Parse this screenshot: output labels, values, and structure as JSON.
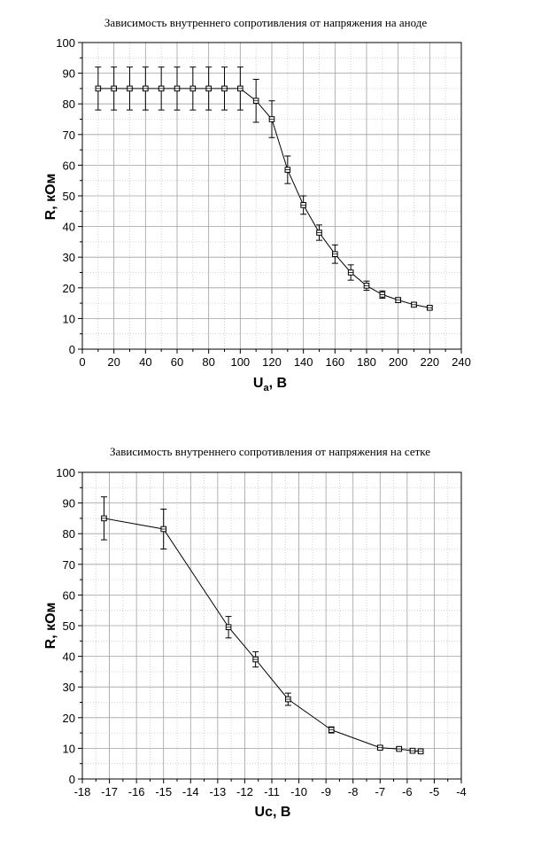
{
  "chart_data": [
    {
      "type": "line",
      "title": "Зависимость внутреннего сопротивления от напряжения на аноде",
      "xlabel_main": "U",
      "xlabel_sub": "a",
      "xlabel_rest": ", В",
      "ylabel": "R, кОм",
      "xlim": [
        0,
        240
      ],
      "ylim": [
        0,
        100
      ],
      "xticks": [
        0,
        20,
        40,
        60,
        80,
        100,
        120,
        140,
        160,
        180,
        200,
        220,
        240
      ],
      "yticks": [
        0,
        10,
        20,
        30,
        40,
        50,
        60,
        70,
        80,
        90,
        100
      ],
      "grid": true,
      "x": [
        10,
        20,
        30,
        40,
        50,
        60,
        70,
        80,
        90,
        100,
        110,
        120,
        130,
        140,
        150,
        160,
        170,
        180,
        190,
        200,
        210,
        220
      ],
      "y": [
        85,
        85,
        85,
        85,
        85,
        85,
        85,
        85,
        85,
        85,
        81,
        75,
        58.5,
        47,
        38,
        31,
        25,
        20.7,
        17.8,
        16,
        14.5,
        13.5
      ],
      "err": [
        7,
        7,
        7,
        7,
        7,
        7,
        7,
        7,
        7,
        7,
        7,
        6,
        4.5,
        3,
        2.5,
        3,
        2.5,
        1.5,
        1.2,
        0.8,
        0.6,
        0.5
      ]
    },
    {
      "type": "line",
      "title": "Зависимость внутреннего сопротивления от напряжения на сетке",
      "xlabel_main": "Uc, В",
      "xlabel_sub": "",
      "xlabel_rest": "",
      "ylabel": "R, кОм",
      "xlim": [
        -18,
        -4
      ],
      "ylim": [
        0,
        100
      ],
      "xticks": [
        -18,
        -17,
        -16,
        -15,
        -14,
        -13,
        -12,
        -11,
        -10,
        -9,
        -8,
        -7,
        -6,
        -5,
        -4
      ],
      "yticks": [
        0,
        10,
        20,
        30,
        40,
        50,
        60,
        70,
        80,
        90,
        100
      ],
      "grid": true,
      "x": [
        -17.2,
        -15,
        -12.6,
        -11.6,
        -10.4,
        -8.8,
        -7,
        -6.3,
        -5.8,
        -5.5
      ],
      "y": [
        85,
        81.5,
        49.5,
        39,
        26,
        16,
        10.2,
        9.8,
        9.2,
        9
      ],
      "err": [
        7,
        6.5,
        3.5,
        2.5,
        2,
        1,
        0.6,
        0.5,
        0.4,
        0.4
      ]
    }
  ]
}
